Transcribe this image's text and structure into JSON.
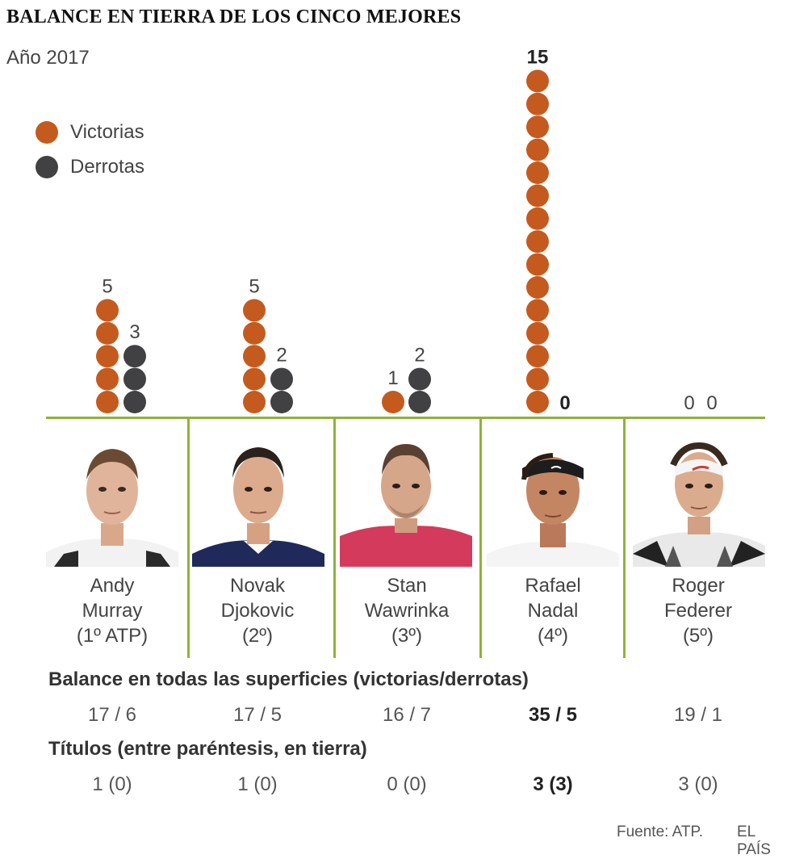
{
  "title": "BALANCE EN TIERRA DE LOS CINCO MEJORES",
  "subtitle": "Año 2017",
  "legend": {
    "wins_label": "Victorias",
    "losses_label": "Derrotas"
  },
  "colors": {
    "wins": "#c55a1e",
    "losses": "#414042",
    "axis": "#8db33a"
  },
  "chart_data": {
    "type": "bar",
    "title": "BALANCE EN TIERRA DE LOS CINCO MEJORES",
    "subtitle": "Año 2017",
    "categories": [
      "Andy Murray",
      "Novak Djokovic",
      "Stan Wawrinka",
      "Rafael Nadal",
      "Roger Federer"
    ],
    "series": [
      {
        "name": "Victorias",
        "values": [
          5,
          5,
          1,
          15,
          0
        ]
      },
      {
        "name": "Derrotas",
        "values": [
          3,
          2,
          2,
          0,
          0
        ]
      }
    ],
    "value_labels": {
      "Victorias": [
        "5",
        "5",
        "1",
        "15",
        "0"
      ],
      "Derrotas": [
        "3",
        "2",
        "2",
        "0",
        "0"
      ]
    },
    "highlight": "Rafael Nadal",
    "xlabel": "",
    "ylabel": ""
  },
  "players": [
    {
      "first": "Andy",
      "last": "Murray",
      "rank": "(1º ATP)",
      "all_surfaces": "17 / 6",
      "titles": "1 (0)"
    },
    {
      "first": "Novak",
      "last": "Djokovic",
      "rank": "(2º)",
      "all_surfaces": "17 / 5",
      "titles": "1 (0)"
    },
    {
      "first": "Stan",
      "last": "Wawrinka",
      "rank": "(3º)",
      "all_surfaces": "16 / 7",
      "titles": "0 (0)"
    },
    {
      "first": "Rafael",
      "last": "Nadal",
      "rank": "(4º)",
      "all_surfaces": "35 / 5",
      "titles": "3 (3)"
    },
    {
      "first": "Roger",
      "last": "Federer",
      "rank": "(5º)",
      "all_surfaces": "19 / 1",
      "titles": "3 (0)"
    }
  ],
  "sections": {
    "all_surfaces_heading": "Balance en todas las superficies (victorias/derrotas)",
    "titles_heading": "Títulos (entre paréntesis, en tierra)"
  },
  "footer": {
    "source": "Fuente: ATP.",
    "brand": "EL PAÍS"
  }
}
